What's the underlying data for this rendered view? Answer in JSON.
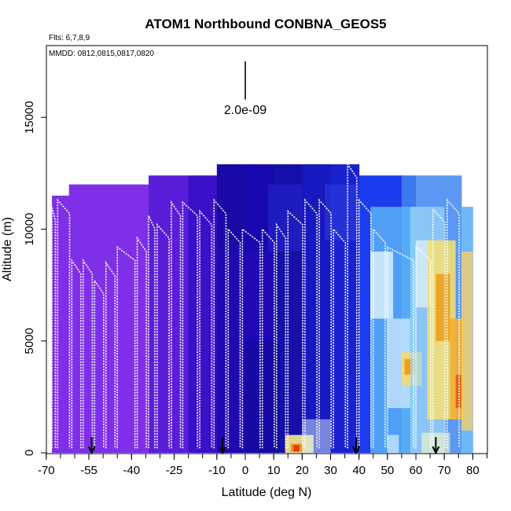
{
  "chart_data": {
    "type": "heatmap",
    "title": "ATOM1 Northbound CONBNA_GEOS5",
    "flights_label": "Flts: 6,7,8,9",
    "dates_label": "MMDD: 0812,0815,0817,0820",
    "xlabel": "Latitude (deg N)",
    "ylabel": "Altitude (m)",
    "xlim": [
      -70,
      85
    ],
    "ylim": [
      0,
      18000
    ],
    "x_ticks": [
      -70,
      -55,
      -40,
      -25,
      -10,
      0,
      10,
      20,
      30,
      40,
      50,
      60,
      70,
      80
    ],
    "x_tick_labels": [
      "-70",
      "-55",
      "-40",
      "-25",
      "-10",
      "0",
      "10",
      "20",
      "30",
      "40",
      "50",
      "60",
      "70",
      "80"
    ],
    "y_ticks": [
      0,
      5000,
      10000,
      15000
    ],
    "y_tick_labels": [
      "0",
      "5000",
      "10000",
      "15000"
    ],
    "scale_bar": {
      "label": "2.0e-09",
      "x": 0,
      "y_top": 17500,
      "y_bottom": 15800
    },
    "arrow_latitudes": [
      -54,
      -8,
      39,
      67
    ],
    "colors": {
      "purple": "#7f2fe8",
      "indigo": "#3a10c8",
      "navy": "#1a0aa8",
      "blue": "#1c3cf0",
      "mid_blue": "#3c78f0",
      "sky": "#5cb8f8",
      "pale": "#d8f0fc",
      "yellow": "#fce888",
      "orange": "#f09000",
      "red": "#e03000"
    }
  }
}
